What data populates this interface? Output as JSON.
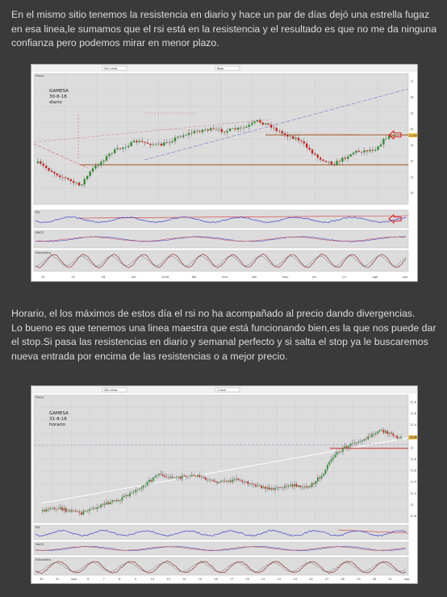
{
  "paragraphs": {
    "first": "En el mismo sitio tenemos la resistencia en diario y hace un par de días dejó una estrella fugaz en esa linea,le sumamos que el rsi está en la resistencia y el resultado es que no me da ninguna confianza pero podemos mirar en menor plazo.",
    "second_lines": [
      "Horario, el los máximos de estos día el rsi no ha acompañado al precio dando divergencias.",
      "Lo bueno es que tenemos una linea maestra que está funcionando bien,es la que nos puede dar el stop.Si pasa las resistencias en diario y semanal perfecto y si salta el stop ya le buscaremos nueva entrada por encima de las resistencias o a mejor precio."
    ]
  },
  "chart1": {
    "annotation": {
      "ticker": "GAMESA",
      "date": "30-8-18",
      "timeframe": "diario"
    },
    "toolbar": {
      "field1": "300 velas",
      "field2": "Base"
    },
    "panel_labels": [
      "Precio",
      "RSI",
      "MACD",
      "Estocástico"
    ],
    "price_ticks": [
      "17",
      "16",
      "15",
      "14",
      "13",
      "12",
      "11",
      "10"
    ],
    "last_price": "11,86",
    "x_ticks": [
      "24",
      "25",
      "26",
      "oct",
      "2018",
      "feb",
      "mar",
      "abr",
      "may",
      "jun",
      "jul",
      "ago",
      "sep"
    ],
    "colors": {
      "bull": "#2e8b2e",
      "bear": "#cc2222",
      "resistance": "#a0521e",
      "trend": "#7070d0",
      "rsi": "#2a2acc",
      "arrow": "#dd2222"
    }
  },
  "chart2": {
    "annotation": {
      "ticker": "GAMESA",
      "date": "31-8-18",
      "timeframe": "horario"
    },
    "toolbar": {
      "field1": "300 velas",
      "field2": "1 hora"
    },
    "panel_labels": [
      "Precio",
      "RSI",
      "MACD",
      "Estocástico"
    ],
    "price_ticks": [
      "12,8",
      "12,6",
      "12,4",
      "12,2",
      "12",
      "11,8",
      "11,6",
      "11,4",
      "11,2",
      "11",
      "10,8"
    ],
    "last_price": "12,08",
    "x_ticks": [
      "30",
      "31",
      "ago",
      "6",
      "7",
      "8",
      "9",
      "10",
      "13",
      "14",
      "15",
      "16",
      "17",
      "20",
      "21",
      "22",
      "23",
      "24",
      "27",
      "28",
      "29",
      "30",
      "31",
      "sep"
    ],
    "colors": {
      "bull": "#2e8b2e",
      "bear": "#cc2222",
      "resistance": "#cc2222",
      "trend": "#ffffff",
      "rsi": "#2a2acc"
    }
  }
}
